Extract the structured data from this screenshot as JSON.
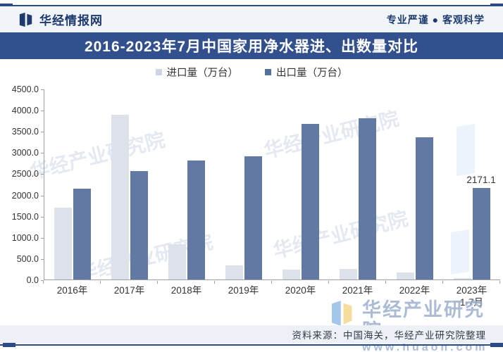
{
  "header": {
    "site_name": "华经情报网",
    "slogan": "专业严谨 ● 客观科学"
  },
  "title_bar": {
    "title": "2016-2023年7月中国家用净水器进、出数量对比"
  },
  "legend": [
    {
      "label": "进口量（万台）",
      "color": "#cdd5e2"
    },
    {
      "label": "出口量（万台）",
      "color": "#54709f"
    }
  ],
  "chart_data": {
    "type": "bar",
    "title": "2016-2023年7月中国家用净水器进、出数量对比",
    "categories": [
      "2016年",
      "2017年",
      "2018年",
      "2019年",
      "2020年",
      "2021年",
      "2022年",
      "2023年"
    ],
    "category_sublabels": [
      "",
      "",
      "",
      "",
      "",
      "",
      "",
      "1-7月"
    ],
    "series": [
      {
        "name": "进口量（万台）",
        "color": "#dce1ea",
        "values": [
          1700,
          3900,
          830,
          330,
          240,
          250,
          170,
          40
        ]
      },
      {
        "name": "出口量（万台）",
        "color": "#6279a3",
        "values": [
          2150,
          2560,
          2810,
          2920,
          3690,
          3810,
          3360,
          2171.1
        ]
      }
    ],
    "xlabel": "",
    "ylabel": "",
    "ylim": [
      0,
      4500
    ],
    "y_tick_step": 500,
    "y_ticks": [
      "4500.0",
      "4000.0",
      "3500.0",
      "3000.0",
      "2500.0",
      "2000.0",
      "1500.0",
      "1000.0",
      "500.0",
      "0.0"
    ],
    "annotations": [
      {
        "text": "2171.1",
        "series": 1,
        "index": 7
      }
    ],
    "legend_position": "top",
    "grid": false
  },
  "watermark": {
    "diagonal_text": "华经产业研究院",
    "brand": "华经产业研究院",
    "url": "www.huaon.com"
  },
  "footer": {
    "source": "资料来源：中国海关，华经产业研究院整理"
  },
  "colors": {
    "navy": "#33508e",
    "frame_line": "#2c4a85",
    "import_bar": "#dce1ea",
    "export_bar": "#6279a3"
  }
}
